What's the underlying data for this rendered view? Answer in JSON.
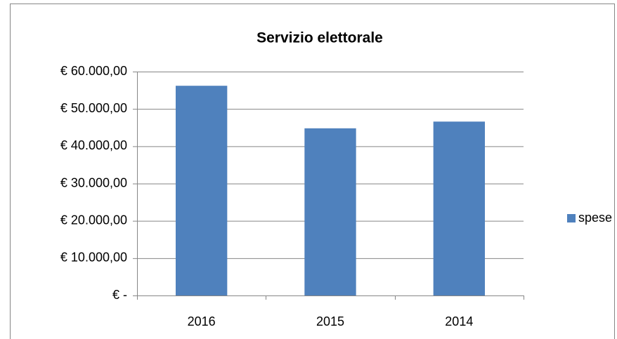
{
  "chart_data": {
    "type": "bar",
    "title": "Servizio elettorale",
    "categories": [
      "2016",
      "2015",
      "2014"
    ],
    "series": [
      {
        "name": "spese",
        "color": "#4f81bd",
        "values": [
          56200,
          44800,
          46600
        ]
      }
    ],
    "ylim": [
      0,
      60000
    ],
    "yticks": [
      {
        "value": 0,
        "label": "€ -"
      },
      {
        "value": 10000,
        "label": "€ 10.000,00"
      },
      {
        "value": 20000,
        "label": "€ 20.000,00"
      },
      {
        "value": 30000,
        "label": "€ 30.000,00"
      },
      {
        "value": 40000,
        "label": "€ 40.000,00"
      },
      {
        "value": 50000,
        "label": "€ 50.000,00"
      },
      {
        "value": 60000,
        "label": "€ 60.000,00"
      }
    ],
    "grid": true,
    "legend": "right"
  }
}
